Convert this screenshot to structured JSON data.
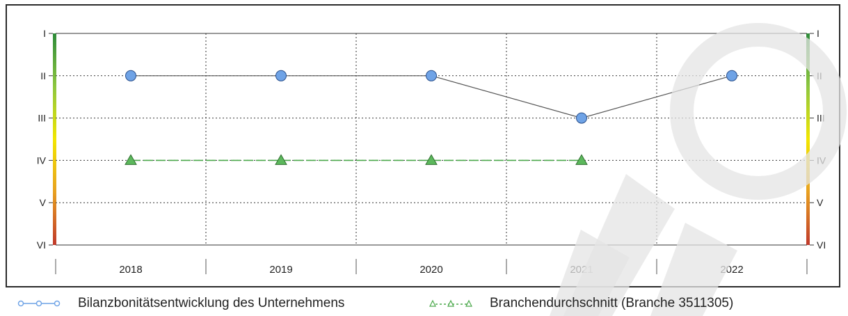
{
  "chart_data": {
    "type": "line",
    "categories": [
      "2018",
      "2019",
      "2020",
      "2021",
      "2022"
    ],
    "y_axis": {
      "labels": [
        "I",
        "II",
        "III",
        "IV",
        "V",
        "VI"
      ],
      "values": [
        1,
        2,
        3,
        4,
        5,
        6
      ],
      "ylim": [
        1,
        6
      ],
      "inverted": true,
      "color_scale": [
        "#2e8b3a",
        "#8cc63f",
        "#f2e600",
        "#e8a020",
        "#c0392b"
      ]
    },
    "grid": true,
    "legend_position": "bottom",
    "series": [
      {
        "name": "Bilanzbonitätsentwicklung des Unternehmens",
        "marker": "circle",
        "color": "#6fa3e6",
        "line_color": "#555555",
        "values": [
          2,
          2,
          2,
          3,
          2
        ]
      },
      {
        "name": "Branchendurchschnitt (Branche 3511305)",
        "marker": "triangle",
        "color": "#5cb85c",
        "line_color": "#4aa84a",
        "values": [
          4,
          4,
          4,
          4,
          null
        ]
      }
    ]
  },
  "watermark": {
    "color": "#e4e4e4"
  }
}
